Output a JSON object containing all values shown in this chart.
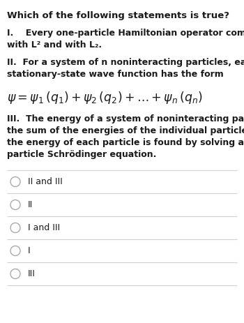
{
  "bg_color": "#ffffff",
  "text_color": "#1a1a1a",
  "title": "Which of the following statements is true?",
  "statement_I_line1": "I.    Every one-particle Hamiltonian operator commutes",
  "statement_I_line2": "with L² and with L₂.",
  "statement_II_line1": "II.  For a system of n noninteracting particles, each",
  "statement_II_line2": "stationary-state wave function has the form",
  "formula": "$\\psi = \\psi_1\\,(q_1) + \\psi_2\\,(q_2) +\\ldots+\\psi_n\\,(q_n)$",
  "statement_III_line1": "III.  The energy of a system of noninteracting particles is",
  "statement_III_line2": "the sum of the energies of the individual particles, where",
  "statement_III_line3": "the energy of each particle is found by solving a one-",
  "statement_III_line4": "particle Schrödinger equation.",
  "options": [
    "II and III",
    "II",
    "I and III",
    "I",
    "III"
  ],
  "divider_color": "#d0d0d0",
  "circle_color": "#aaaaaa",
  "title_fontsize": 9.5,
  "body_fontsize": 9.0,
  "formula_fontsize": 12.5,
  "option_fontsize": 9.0
}
